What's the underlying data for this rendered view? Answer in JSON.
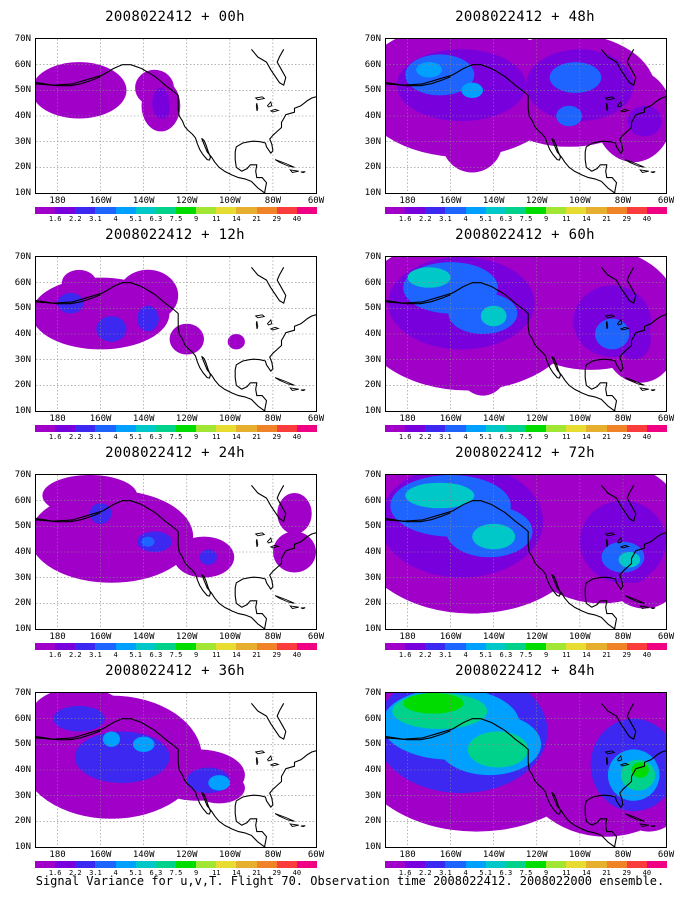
{
  "caption": "Signal Variance for u,v,T. Flight 70. Observation time 2008022412. 2008022000 ensemble.",
  "y_axis_labels": [
    "70N",
    "60N",
    "50N",
    "40N",
    "30N",
    "20N",
    "10N"
  ],
  "x_axis_labels": [
    "180",
    "160W",
    "140W",
    "120W",
    "100W",
    "80W",
    "60W"
  ],
  "colorbar": {
    "colors": [
      "#a000c8",
      "#7800dc",
      "#3c28f0",
      "#1e64ff",
      "#00a0ff",
      "#00c8c8",
      "#00d28c",
      "#00dc00",
      "#a0e632",
      "#e6dc32",
      "#e6af2d",
      "#f08228",
      "#fa3c3c",
      "#f00082"
    ],
    "labels": [
      "1.6",
      "2.2",
      "3.1",
      "4",
      "5.1",
      "6.3",
      "7.5",
      "9",
      "11",
      "14",
      "21",
      "29",
      "40"
    ]
  },
  "panels": [
    {
      "title": "2008022412 + 00h",
      "intensity": 0
    },
    {
      "title": "2008022412 + 12h",
      "intensity": 1
    },
    {
      "title": "2008022412 + 24h",
      "intensity": 2
    },
    {
      "title": "2008022412 + 36h",
      "intensity": 3
    },
    {
      "title": "2008022412 + 48h",
      "intensity": 4
    },
    {
      "title": "2008022412 + 60h",
      "intensity": 5
    },
    {
      "title": "2008022412 + 72h",
      "intensity": 6
    },
    {
      "title": "2008022412 + 84h",
      "intensity": 7
    }
  ]
}
